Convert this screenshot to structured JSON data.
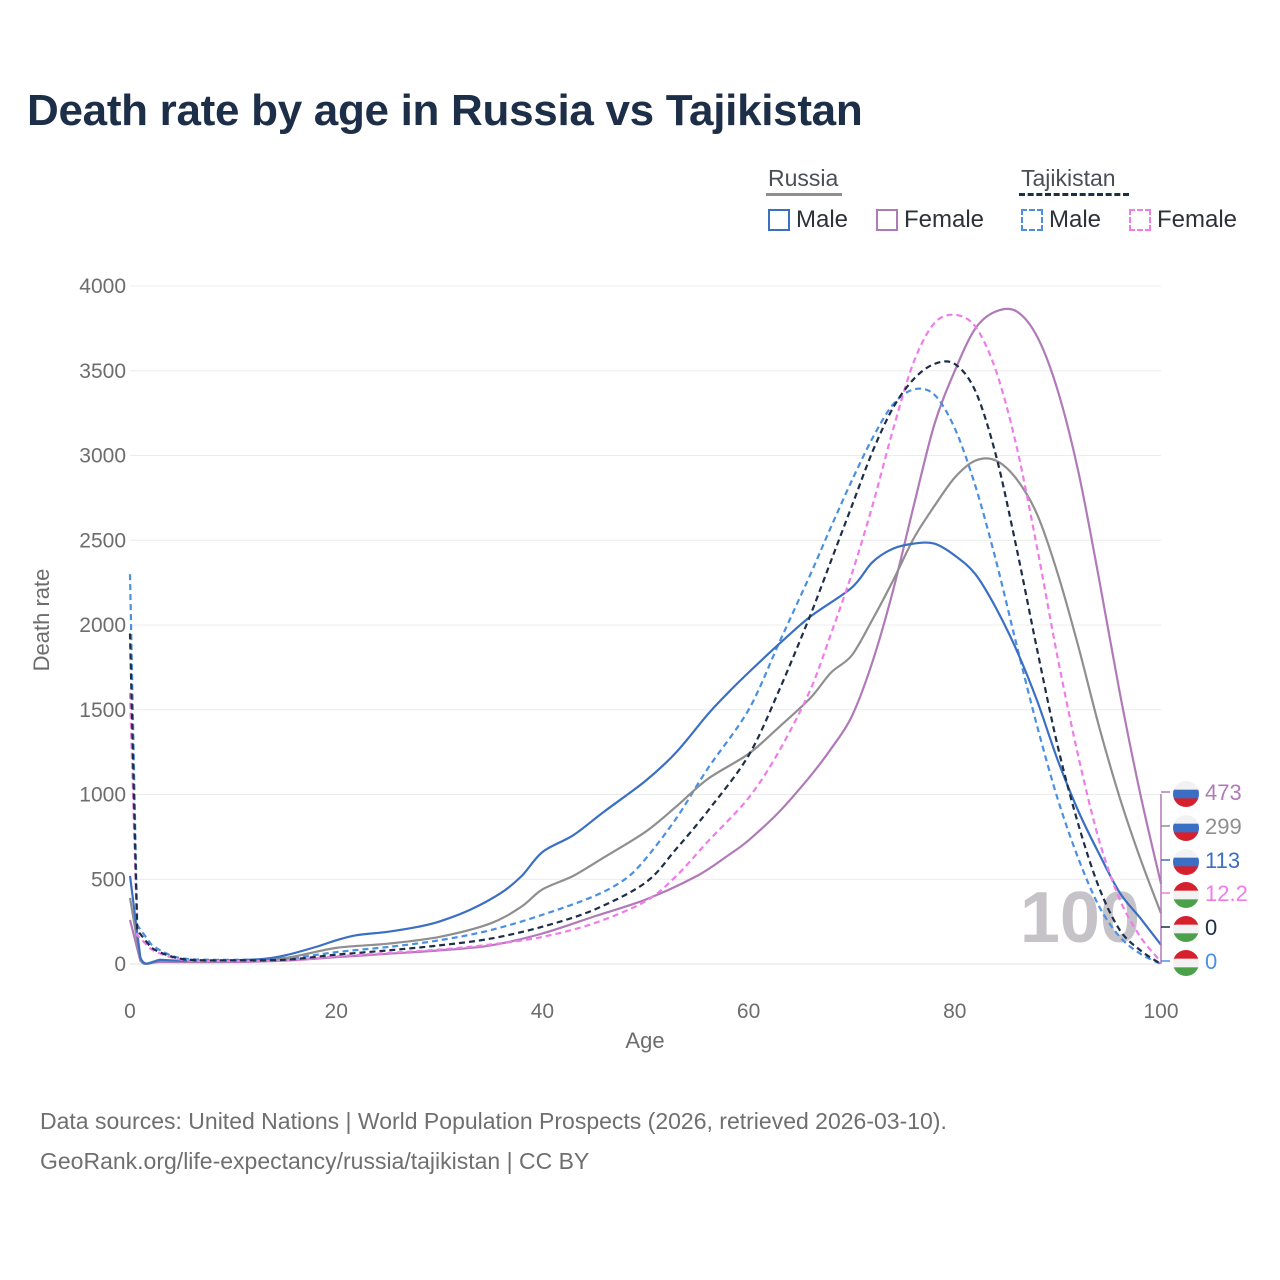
{
  "title": "Death rate by age in Russia vs Tajikistan",
  "legend": {
    "groups": [
      {
        "name": "Russia",
        "line_style": "solid",
        "color": "#8f8f8f",
        "items": [
          {
            "label": "Male",
            "color": "#3a6fc4"
          },
          {
            "label": "Female",
            "color": "#b07ab8"
          }
        ]
      },
      {
        "name": "Tajikistan",
        "line_style": "dashed",
        "color": "#1c2e48",
        "items": [
          {
            "label": "Male",
            "color": "#4a90e2"
          },
          {
            "label": "Female",
            "color": "#f07ce8"
          }
        ]
      }
    ]
  },
  "year_label": "100",
  "footer": {
    "line1": "Data sources: United Nations | World Population Prospects (2026, retrieved 2026-03-10).",
    "line2": "GeoRank.org/life-expectancy/russia/tajikistan | CC BY"
  },
  "chart_data": {
    "type": "line",
    "xlabel": "Age",
    "ylabel": "Death rate",
    "xlim": [
      0,
      100
    ],
    "ylim": [
      0,
      4000
    ],
    "x_ticks": [
      0,
      20,
      40,
      60,
      80,
      100
    ],
    "y_ticks": [
      0,
      500,
      1000,
      1500,
      2000,
      2500,
      3000,
      3500,
      4000
    ],
    "grid": true,
    "series": [
      {
        "name": "Russia Male",
        "country": "Russia",
        "sex": "Male",
        "color": "#3a6fc4",
        "dash": false,
        "points": [
          [
            0,
            520
          ],
          [
            1,
            40
          ],
          [
            3,
            25
          ],
          [
            5,
            20
          ],
          [
            10,
            22
          ],
          [
            13,
            30
          ],
          [
            15,
            50
          ],
          [
            18,
            100
          ],
          [
            20,
            140
          ],
          [
            22,
            170
          ],
          [
            25,
            190
          ],
          [
            28,
            220
          ],
          [
            30,
            250
          ],
          [
            33,
            320
          ],
          [
            36,
            420
          ],
          [
            38,
            520
          ],
          [
            40,
            660
          ],
          [
            43,
            760
          ],
          [
            46,
            900
          ],
          [
            50,
            1080
          ],
          [
            53,
            1250
          ],
          [
            56,
            1470
          ],
          [
            58,
            1600
          ],
          [
            60,
            1720
          ],
          [
            63,
            1890
          ],
          [
            66,
            2050
          ],
          [
            70,
            2220
          ],
          [
            72,
            2370
          ],
          [
            74,
            2450
          ],
          [
            76,
            2480
          ],
          [
            78,
            2480
          ],
          [
            80,
            2410
          ],
          [
            82,
            2300
          ],
          [
            84,
            2100
          ],
          [
            86,
            1850
          ],
          [
            88,
            1550
          ],
          [
            90,
            1200
          ],
          [
            92,
            900
          ],
          [
            94,
            650
          ],
          [
            96,
            420
          ],
          [
            98,
            270
          ],
          [
            100,
            113
          ]
        ],
        "end_value": "113"
      },
      {
        "name": "Russia Female",
        "country": "Russia",
        "sex": "Female",
        "color": "#b07ab8",
        "dash": false,
        "points": [
          [
            0,
            260
          ],
          [
            1,
            20
          ],
          [
            3,
            12
          ],
          [
            10,
            12
          ],
          [
            15,
            20
          ],
          [
            20,
            40
          ],
          [
            25,
            60
          ],
          [
            30,
            80
          ],
          [
            35,
            110
          ],
          [
            40,
            180
          ],
          [
            45,
            280
          ],
          [
            50,
            380
          ],
          [
            55,
            520
          ],
          [
            58,
            640
          ],
          [
            60,
            730
          ],
          [
            63,
            900
          ],
          [
            66,
            1110
          ],
          [
            68,
            1270
          ],
          [
            70,
            1460
          ],
          [
            72,
            1780
          ],
          [
            74,
            2200
          ],
          [
            76,
            2700
          ],
          [
            78,
            3180
          ],
          [
            80,
            3500
          ],
          [
            82,
            3750
          ],
          [
            84,
            3850
          ],
          [
            86,
            3850
          ],
          [
            88,
            3700
          ],
          [
            90,
            3380
          ],
          [
            92,
            2900
          ],
          [
            94,
            2270
          ],
          [
            96,
            1600
          ],
          [
            98,
            1000
          ],
          [
            100,
            473
          ]
        ],
        "end_value": "473"
      },
      {
        "name": "Russia Total",
        "country": "Russia",
        "sex": "Total",
        "color": "#8f8f8f",
        "dash": false,
        "points": [
          [
            0,
            390
          ],
          [
            1,
            30
          ],
          [
            3,
            18
          ],
          [
            10,
            18
          ],
          [
            15,
            35
          ],
          [
            20,
            95
          ],
          [
            25,
            120
          ],
          [
            30,
            160
          ],
          [
            35,
            240
          ],
          [
            38,
            340
          ],
          [
            40,
            440
          ],
          [
            43,
            520
          ],
          [
            46,
            630
          ],
          [
            50,
            780
          ],
          [
            53,
            930
          ],
          [
            56,
            1090
          ],
          [
            60,
            1240
          ],
          [
            63,
            1400
          ],
          [
            66,
            1570
          ],
          [
            68,
            1720
          ],
          [
            70,
            1820
          ],
          [
            72,
            2030
          ],
          [
            74,
            2260
          ],
          [
            76,
            2510
          ],
          [
            78,
            2700
          ],
          [
            80,
            2870
          ],
          [
            82,
            2970
          ],
          [
            84,
            2970
          ],
          [
            86,
            2860
          ],
          [
            88,
            2650
          ],
          [
            90,
            2300
          ],
          [
            92,
            1870
          ],
          [
            94,
            1400
          ],
          [
            96,
            980
          ],
          [
            98,
            620
          ],
          [
            100,
            299
          ]
        ],
        "end_value": "299"
      },
      {
        "name": "Tajikistan Male",
        "country": "Tajikistan",
        "sex": "Male",
        "color": "#4a90e2",
        "dash": true,
        "points": [
          [
            0,
            2300
          ],
          [
            0.7,
            230
          ],
          [
            2,
            120
          ],
          [
            4,
            50
          ],
          [
            6,
            28
          ],
          [
            10,
            25
          ],
          [
            15,
            30
          ],
          [
            20,
            70
          ],
          [
            25,
            100
          ],
          [
            30,
            140
          ],
          [
            35,
            200
          ],
          [
            40,
            290
          ],
          [
            45,
            400
          ],
          [
            48,
            500
          ],
          [
            50,
            620
          ],
          [
            53,
            860
          ],
          [
            56,
            1150
          ],
          [
            60,
            1500
          ],
          [
            63,
            1900
          ],
          [
            66,
            2300
          ],
          [
            68,
            2580
          ],
          [
            70,
            2850
          ],
          [
            72,
            3100
          ],
          [
            74,
            3300
          ],
          [
            76,
            3390
          ],
          [
            78,
            3360
          ],
          [
            80,
            3160
          ],
          [
            82,
            2820
          ],
          [
            84,
            2380
          ],
          [
            86,
            1880
          ],
          [
            88,
            1400
          ],
          [
            90,
            970
          ],
          [
            92,
            620
          ],
          [
            94,
            340
          ],
          [
            96,
            160
          ],
          [
            98,
            60
          ],
          [
            100,
            0
          ]
        ],
        "end_value": "0"
      },
      {
        "name": "Tajikistan Female",
        "country": "Tajikistan",
        "sex": "Female",
        "color": "#f07ce8",
        "dash": true,
        "points": [
          [
            0,
            1600
          ],
          [
            0.7,
            170
          ],
          [
            2,
            90
          ],
          [
            4,
            40
          ],
          [
            6,
            20
          ],
          [
            10,
            18
          ],
          [
            15,
            20
          ],
          [
            20,
            45
          ],
          [
            25,
            65
          ],
          [
            30,
            85
          ],
          [
            35,
            115
          ],
          [
            40,
            160
          ],
          [
            45,
            240
          ],
          [
            50,
            370
          ],
          [
            53,
            520
          ],
          [
            56,
            720
          ],
          [
            60,
            980
          ],
          [
            63,
            1260
          ],
          [
            66,
            1620
          ],
          [
            68,
            1950
          ],
          [
            70,
            2300
          ],
          [
            72,
            2700
          ],
          [
            74,
            3150
          ],
          [
            76,
            3550
          ],
          [
            78,
            3780
          ],
          [
            80,
            3830
          ],
          [
            82,
            3760
          ],
          [
            84,
            3500
          ],
          [
            86,
            3050
          ],
          [
            88,
            2450
          ],
          [
            90,
            1800
          ],
          [
            92,
            1220
          ],
          [
            94,
            730
          ],
          [
            96,
            380
          ],
          [
            98,
            160
          ],
          [
            100,
            12.2
          ]
        ],
        "end_value": "12.2"
      },
      {
        "name": "Tajikistan Total",
        "country": "Tajikistan",
        "sex": "Total",
        "color": "#1c2e48",
        "dash": true,
        "points": [
          [
            0,
            1950
          ],
          [
            0.7,
            200
          ],
          [
            2,
            100
          ],
          [
            4,
            45
          ],
          [
            6,
            24
          ],
          [
            10,
            22
          ],
          [
            15,
            25
          ],
          [
            20,
            55
          ],
          [
            25,
            80
          ],
          [
            30,
            110
          ],
          [
            35,
            150
          ],
          [
            40,
            220
          ],
          [
            45,
            320
          ],
          [
            50,
            480
          ],
          [
            53,
            680
          ],
          [
            56,
            900
          ],
          [
            60,
            1230
          ],
          [
            63,
            1620
          ],
          [
            66,
            2060
          ],
          [
            68,
            2380
          ],
          [
            70,
            2700
          ],
          [
            72,
            3020
          ],
          [
            74,
            3280
          ],
          [
            76,
            3450
          ],
          [
            78,
            3540
          ],
          [
            80,
            3540
          ],
          [
            82,
            3380
          ],
          [
            84,
            3000
          ],
          [
            86,
            2450
          ],
          [
            88,
            1850
          ],
          [
            90,
            1280
          ],
          [
            92,
            820
          ],
          [
            94,
            450
          ],
          [
            96,
            200
          ],
          [
            98,
            80
          ],
          [
            100,
            0
          ]
        ],
        "end_value": "0"
      }
    ],
    "end_labels_order": [
      "Russia Female",
      "Russia Total",
      "Russia Male",
      "Tajikistan Female",
      "Tajikistan Total",
      "Tajikistan Male"
    ]
  }
}
